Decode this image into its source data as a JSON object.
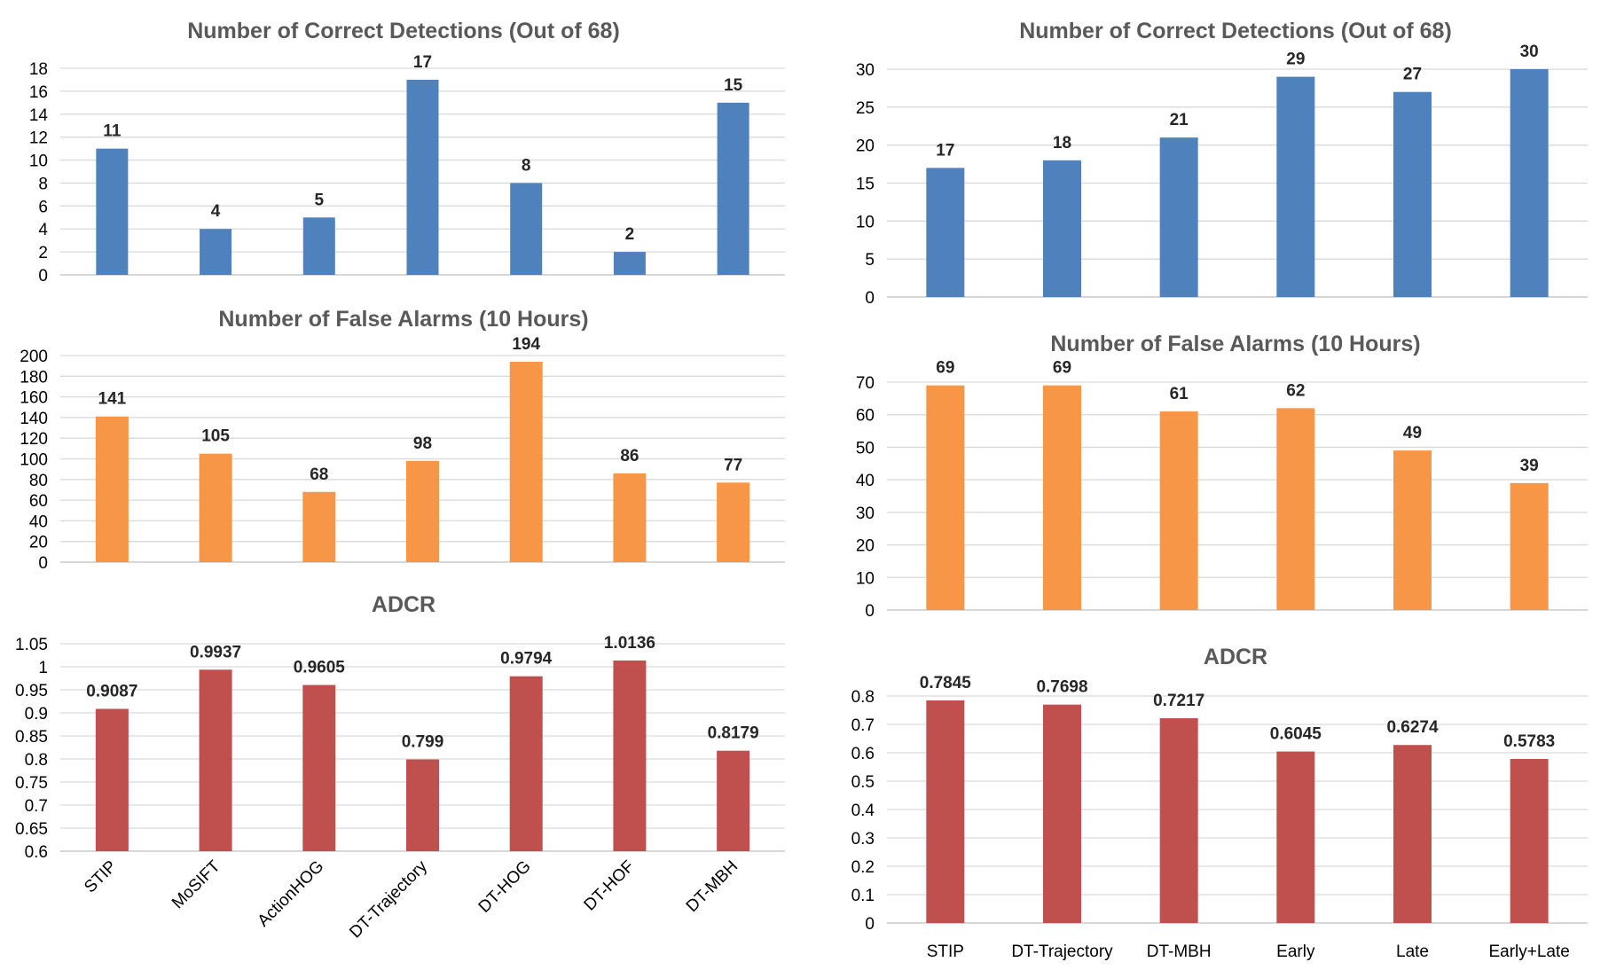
{
  "chart_data": [
    {
      "type": "bar",
      "title": "Number of Correct Detections (Out of 68)",
      "categories": [
        "STIP",
        "MoSIFT",
        "ActionHOG",
        "DT-Trajectory",
        "DT-HOG",
        "DT-HOF",
        "DT-MBH"
      ],
      "values": [
        11,
        4,
        5,
        17,
        8,
        2,
        15
      ],
      "ylim": [
        0,
        18
      ],
      "yticks": [
        "0",
        "2",
        "4",
        "6",
        "8",
        "10",
        "12",
        "14",
        "16",
        "18"
      ],
      "color": "#4f81bd",
      "grid": true,
      "show_categories": false
    },
    {
      "type": "bar",
      "title": "Number of False Alarms (10 Hours)",
      "categories": [
        "STIP",
        "MoSIFT",
        "ActionHOG",
        "DT-Trajectory",
        "DT-HOG",
        "DT-HOF",
        "DT-MBH"
      ],
      "values": [
        141,
        105,
        68,
        98,
        194,
        86,
        77
      ],
      "ylim": [
        0,
        200
      ],
      "yticks": [
        "0",
        "20",
        "40",
        "60",
        "80",
        "100",
        "120",
        "140",
        "160",
        "180",
        "200"
      ],
      "color": "#f79646",
      "grid": true,
      "show_categories": false
    },
    {
      "type": "bar",
      "title": "ADCR",
      "categories": [
        "STIP",
        "MoSIFT",
        "ActionHOG",
        "DT-Trajectory",
        "DT-HOG",
        "DT-HOF",
        "DT-MBH"
      ],
      "values": [
        0.9087,
        0.9937,
        0.9605,
        0.799,
        0.9794,
        1.0136,
        0.8179
      ],
      "data_labels": [
        "0.9087",
        "0.9937",
        "0.9605",
        "0.799",
        "0.9794",
        "1.0136",
        "0.8179"
      ],
      "ylim": [
        0.6,
        1.05
      ],
      "yticks": [
        "0.6",
        "0.65",
        "0.7",
        "0.75",
        "0.8",
        "0.85",
        "0.9",
        "0.95",
        "1",
        "1.05"
      ],
      "color": "#c0504d",
      "grid": true,
      "show_categories": true,
      "rotated_categories": true
    },
    {
      "type": "bar",
      "title": "Number of Correct Detections (Out of 68)",
      "categories": [
        "STIP",
        "DT-Trajectory",
        "DT-MBH",
        "Early",
        "Late",
        "Early+Late"
      ],
      "values": [
        17,
        18,
        21,
        29,
        27,
        30
      ],
      "ylim": [
        0,
        30
      ],
      "yticks": [
        "0",
        "5",
        "10",
        "15",
        "20",
        "25",
        "30"
      ],
      "color": "#4f81bd",
      "grid": true,
      "show_categories": false
    },
    {
      "type": "bar",
      "title": "Number of False Alarms (10 Hours)",
      "categories": [
        "STIP",
        "DT-Trajectory",
        "DT-MBH",
        "Early",
        "Late",
        "Early+Late"
      ],
      "values": [
        69,
        69,
        61,
        62,
        49,
        39
      ],
      "ylim": [
        0,
        70
      ],
      "yticks": [
        "0",
        "10",
        "20",
        "30",
        "40",
        "50",
        "60",
        "70"
      ],
      "color": "#f79646",
      "grid": true,
      "show_categories": false
    },
    {
      "type": "bar",
      "title": "ADCR",
      "categories": [
        "STIP",
        "DT-Trajectory",
        "DT-MBH",
        "Early",
        "Late",
        "Early+Late"
      ],
      "values": [
        0.7845,
        0.7698,
        0.7217,
        0.6045,
        0.6274,
        0.5783
      ],
      "data_labels": [
        "0.7845",
        "0.7698",
        "0.7217",
        "0.6045",
        "0.6274",
        "0.5783"
      ],
      "ylim": [
        0,
        0.8
      ],
      "yticks": [
        "0",
        "0.1",
        "0.2",
        "0.3",
        "0.4",
        "0.5",
        "0.6",
        "0.7",
        "0.8"
      ],
      "color": "#c0504d",
      "grid": true,
      "show_categories": true,
      "rotated_categories": false
    }
  ]
}
